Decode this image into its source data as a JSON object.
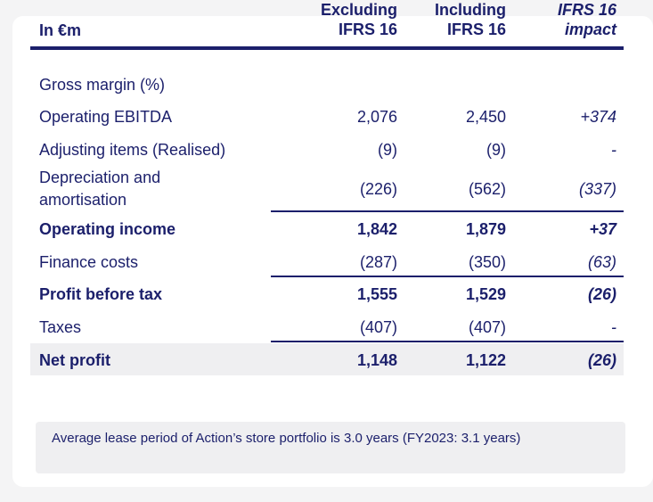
{
  "header": {
    "label": "In €m",
    "col1_line1": "Excluding",
    "col1_line2": "IFRS 16",
    "col2_line1": "Including",
    "col2_line2": "IFRS 16",
    "col3_line1": "IFRS 16",
    "col3_line2": "impact"
  },
  "rows": [
    {
      "label": "Gross margin (%)",
      "excl": "",
      "incl": "",
      "impact": ""
    },
    {
      "label": "Operating EBITDA",
      "excl": "2,076",
      "incl": "2,450",
      "impact": "+374"
    },
    {
      "label": "Adjusting items (Realised)",
      "excl": "(9)",
      "incl": "(9)",
      "impact": "-"
    },
    {
      "label_line1": "Depreciation and",
      "label_line2": "amortisation",
      "excl": "(226)",
      "incl": "(562)",
      "impact": "(337)"
    },
    {
      "label": "Operating income",
      "excl": "1,842",
      "incl": "1,879",
      "impact": "+37"
    },
    {
      "label": "Finance costs",
      "excl": "(287)",
      "incl": "(350)",
      "impact": "(63)"
    },
    {
      "label": "Profit before tax",
      "excl": "1,555",
      "incl": "1,529",
      "impact": "(26)"
    },
    {
      "label": "Taxes",
      "excl": "(407)",
      "incl": "(407)",
      "impact": "-"
    },
    {
      "label": "Net profit",
      "excl": "1,148",
      "incl": "1,122",
      "impact": "(26)"
    }
  ],
  "note": "Average lease period of Action’s store portfolio is 3.0 years (FY2023: 3.1 years)",
  "colors": {
    "navy": "#1b1f6b",
    "shade": "#efeff1",
    "background": "#f4f4f5"
  }
}
